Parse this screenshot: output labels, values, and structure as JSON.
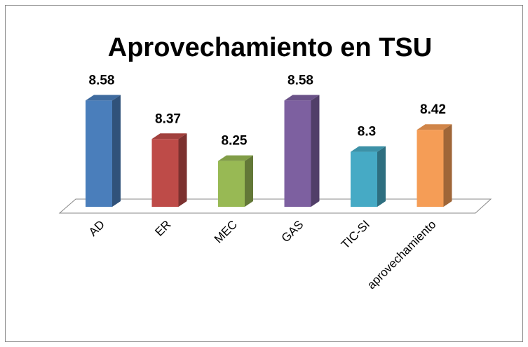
{
  "chart_data": {
    "type": "bar3d",
    "title": "Aprovechamiento en TSU",
    "categories": [
      "AD",
      "ER",
      "MEC",
      "GAS",
      "TIC-SI",
      "aprovechamiento"
    ],
    "values": [
      8.58,
      8.37,
      8.25,
      8.58,
      8.3,
      8.42
    ],
    "colors": [
      "#4a7ebb",
      "#be4b48",
      "#98b954",
      "#7d60a0",
      "#46aac5",
      "#f59d56"
    ],
    "ylim": [
      8,
      8.7
    ]
  }
}
